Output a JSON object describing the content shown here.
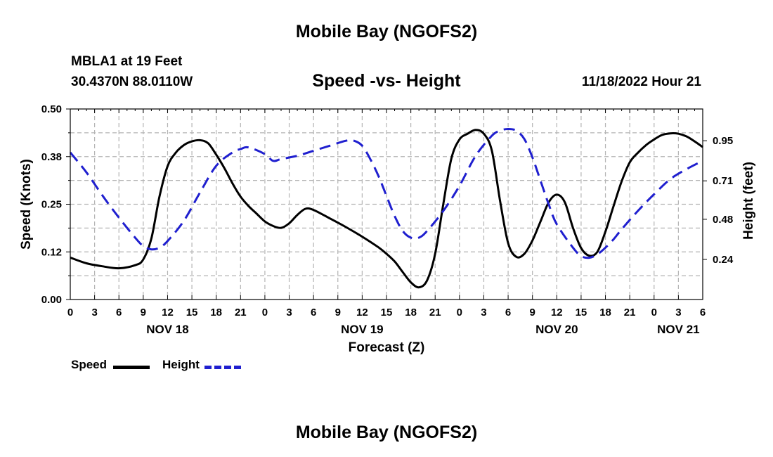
{
  "page": {
    "title": "Mobile Bay (NGOFS2)",
    "bottom_title": "Mobile Bay (NGOFS2)",
    "station": "MBLA1 at 19 Feet",
    "coords": "30.4370N  88.0110W",
    "chart_title": "Speed -vs- Height",
    "timestamp": "11/18/2022 Hour 21"
  },
  "legend": {
    "speed_label": "Speed",
    "height_label": "Height"
  },
  "colors": {
    "speed": "#000000",
    "height": "#1f1fcf",
    "grid": "#b4b4b4"
  },
  "chart_data": {
    "type": "line",
    "title": "Speed -vs- Height",
    "xlabel": "Forecast (Z)",
    "ylabel": "Speed (Knots)",
    "y2label": "Height (feet)",
    "xlim": [
      0,
      78
    ],
    "ylim": [
      0.0,
      0.5
    ],
    "y2lim": [
      0.0,
      1.14
    ],
    "x_ticks": [
      0,
      3,
      6,
      9,
      12,
      15,
      18,
      21,
      24,
      27,
      30,
      33,
      36,
      39,
      42,
      45,
      48,
      51,
      54,
      57,
      60,
      63,
      66,
      69,
      72,
      75,
      78
    ],
    "x_tick_labels": [
      "0",
      "3",
      "6",
      "9",
      "12",
      "15",
      "18",
      "21",
      "0",
      "3",
      "6",
      "9",
      "12",
      "15",
      "18",
      "21",
      "0",
      "3",
      "6",
      "9",
      "12",
      "15",
      "18",
      "21",
      "0",
      "3",
      "6"
    ],
    "date_labels": [
      {
        "x": 12,
        "label": "NOV 18"
      },
      {
        "x": 36,
        "label": "NOV 19"
      },
      {
        "x": 60,
        "label": "NOV 20"
      },
      {
        "x": 75,
        "label": "NOV 21"
      }
    ],
    "y_ticks": [
      0.0,
      0.125,
      0.25,
      0.375,
      0.5
    ],
    "y_tick_labels": [
      "0.00",
      "0.12",
      "0.25",
      "0.38",
      "0.50"
    ],
    "y2_ticks": [
      0.24,
      0.48,
      0.71,
      0.95
    ],
    "y2_tick_labels": [
      "0.24",
      "0.48",
      "0.71",
      "0.95"
    ],
    "grid": true,
    "series": [
      {
        "name": "Speed",
        "axis": "left",
        "style": "solid",
        "x": [
          0,
          2,
          4,
          6,
          8,
          9,
          10,
          11,
          12,
          13,
          14,
          15,
          16,
          17,
          18,
          19,
          20,
          21,
          22,
          23,
          24,
          25,
          26,
          27,
          28,
          29,
          30,
          32,
          34,
          36,
          38,
          39,
          40,
          41,
          42,
          43,
          44,
          45,
          46,
          47,
          48,
          49,
          50,
          51,
          52,
          53,
          54,
          55,
          56,
          57,
          58,
          59,
          60,
          61,
          62,
          63,
          64,
          65,
          66,
          67,
          68,
          69,
          70,
          71,
          72,
          73,
          74,
          75,
          76,
          77,
          78
        ],
        "values": [
          0.11,
          0.095,
          0.087,
          0.082,
          0.09,
          0.105,
          0.16,
          0.27,
          0.35,
          0.385,
          0.405,
          0.415,
          0.418,
          0.41,
          0.38,
          0.345,
          0.305,
          0.27,
          0.245,
          0.225,
          0.205,
          0.193,
          0.188,
          0.2,
          0.222,
          0.238,
          0.235,
          0.213,
          0.19,
          0.165,
          0.137,
          0.12,
          0.1,
          0.072,
          0.045,
          0.032,
          0.05,
          0.12,
          0.25,
          0.37,
          0.42,
          0.435,
          0.445,
          0.435,
          0.39,
          0.26,
          0.148,
          0.112,
          0.12,
          0.155,
          0.205,
          0.255,
          0.275,
          0.255,
          0.188,
          0.135,
          0.115,
          0.125,
          0.178,
          0.245,
          0.31,
          0.36,
          0.385,
          0.405,
          0.42,
          0.432,
          0.436,
          0.435,
          0.428,
          0.415,
          0.4
        ]
      },
      {
        "name": "Height",
        "axis": "right",
        "style": "dashed",
        "x": [
          0,
          2,
          4,
          6,
          8,
          9,
          10,
          11,
          12,
          14,
          16,
          18,
          20,
          21,
          22,
          24,
          25,
          26,
          28,
          30,
          32,
          34,
          35,
          36,
          37,
          38,
          39,
          40,
          41,
          42,
          43,
          44,
          46,
          48,
          50,
          52,
          53,
          54,
          55,
          56,
          57,
          58,
          59,
          60,
          62,
          63,
          64,
          65,
          66,
          67,
          68,
          70,
          72,
          74,
          76,
          78
        ],
        "values": [
          0.88,
          0.76,
          0.62,
          0.49,
          0.37,
          0.32,
          0.3,
          0.31,
          0.35,
          0.47,
          0.64,
          0.8,
          0.88,
          0.9,
          0.91,
          0.87,
          0.83,
          0.84,
          0.86,
          0.89,
          0.92,
          0.95,
          0.95,
          0.92,
          0.84,
          0.74,
          0.62,
          0.5,
          0.41,
          0.37,
          0.37,
          0.41,
          0.53,
          0.68,
          0.86,
          0.98,
          1.01,
          1.02,
          1.01,
          0.96,
          0.85,
          0.71,
          0.57,
          0.45,
          0.31,
          0.26,
          0.25,
          0.27,
          0.31,
          0.36,
          0.42,
          0.53,
          0.63,
          0.72,
          0.78,
          0.83
        ]
      }
    ]
  }
}
